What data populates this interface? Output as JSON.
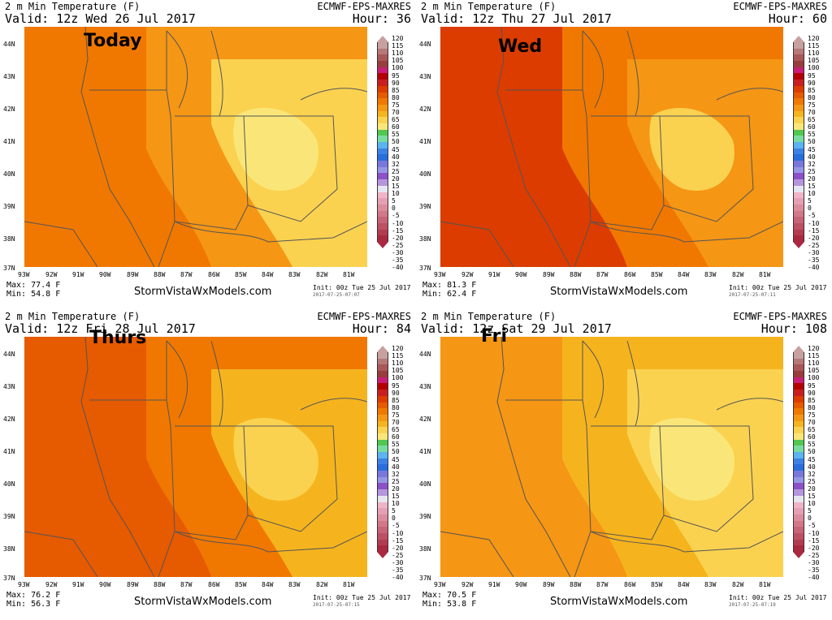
{
  "colorbar": {
    "labels": [
      "120",
      "115",
      "110",
      "105",
      "100",
      "95",
      "90",
      "85",
      "80",
      "75",
      "70",
      "65",
      "60",
      "55",
      "50",
      "45",
      "40",
      "32",
      "25",
      "20",
      "15",
      "10",
      "5",
      "0",
      "-5",
      "-10",
      "-15",
      "-20",
      "-25",
      "-30",
      "-35",
      "-40"
    ],
    "colors": [
      "#c8a0a0",
      "#b87878",
      "#a85858",
      "#983c3c",
      "#c81e78",
      "#b40000",
      "#c81e1e",
      "#dc3c00",
      "#e65a00",
      "#f07800",
      "#f59614",
      "#f5b41e",
      "#fad250",
      "#fae678",
      "#50c850",
      "#78dca0",
      "#5ab4f0",
      "#3c82e6",
      "#286edc",
      "#7878dc",
      "#9696e6",
      "#8c50c8",
      "#b496dc",
      "#e6e6f0",
      "#f0b4c8",
      "#e6a0b4",
      "#dc8c9c",
      "#d27888",
      "#c86478",
      "#be5064",
      "#b43c50",
      "#aa2840"
    ]
  },
  "panels": [
    {
      "title_left": "2 m Min Temperature (F)",
      "title_right": "ECMWF-EPS-MAXRES",
      "valid": "Valid: 12z Wed 26 Jul 2017",
      "hour": "Hour: 36",
      "label": "Today",
      "max": "Max: 77.4 F",
      "min": "Min: 54.8 F",
      "init": "Init: 00z Tue 25 Jul 2017",
      "stamp": "2017-07-25-07:07",
      "site": "StormVistaWxModels.com",
      "fill": [
        "#f07800",
        "#f59614",
        "#fad250",
        "#fae678"
      ]
    },
    {
      "title_left": "2 m Min Temperature (F)",
      "title_right": "ECMWF-EPS-MAXRES",
      "valid": "Valid: 12z Thu 27 Jul 2017",
      "hour": "Hour: 60",
      "label": "Wed",
      "max": "Max: 81.3 F",
      "min": "Min: 62.4 F",
      "init": "Init: 00z Tue 25 Jul 2017",
      "stamp": "2017-07-25-07:11",
      "site": "StormVistaWxModels.com",
      "fill": [
        "#dc3c00",
        "#f07800",
        "#f59614",
        "#fad250"
      ]
    },
    {
      "title_left": "2 m Min Temperature (F)",
      "title_right": "ECMWF-EPS-MAXRES",
      "valid": "Valid: 12z Fri 28 Jul 2017",
      "hour": "Hour: 84",
      "label": "Thurs",
      "max": "Max: 76.2 F",
      "min": "Min: 56.3 F",
      "init": "Init: 00z Tue 25 Jul 2017",
      "stamp": "2017-07-25-07:15",
      "site": "StormVistaWxModels.com",
      "fill": [
        "#e65a00",
        "#f07800",
        "#f5b41e",
        "#fad250"
      ]
    },
    {
      "title_left": "2 m Min Temperature (F)",
      "title_right": "ECMWF-EPS-MAXRES",
      "valid": "Valid: 12z Sat 29 Jul 2017",
      "hour": "Hour: 108",
      "label": "Fri",
      "max": "Max: 70.5 F",
      "min": "Min: 53.8 F",
      "init": "Init: 00z Tue 25 Jul 2017",
      "stamp": "2017-07-25-07:19",
      "site": "StormVistaWxModels.com",
      "fill": [
        "#f59614",
        "#f5b41e",
        "#fad250",
        "#fae678"
      ]
    }
  ],
  "lat_labels": [
    "44N",
    "43N",
    "42N",
    "41N",
    "40N",
    "39N",
    "38N",
    "37N"
  ],
  "lon_labels": [
    "93W",
    "92W",
    "91W",
    "90W",
    "89W",
    "88W",
    "87W",
    "86W",
    "85W",
    "84W",
    "83W",
    "82W",
    "81W"
  ]
}
